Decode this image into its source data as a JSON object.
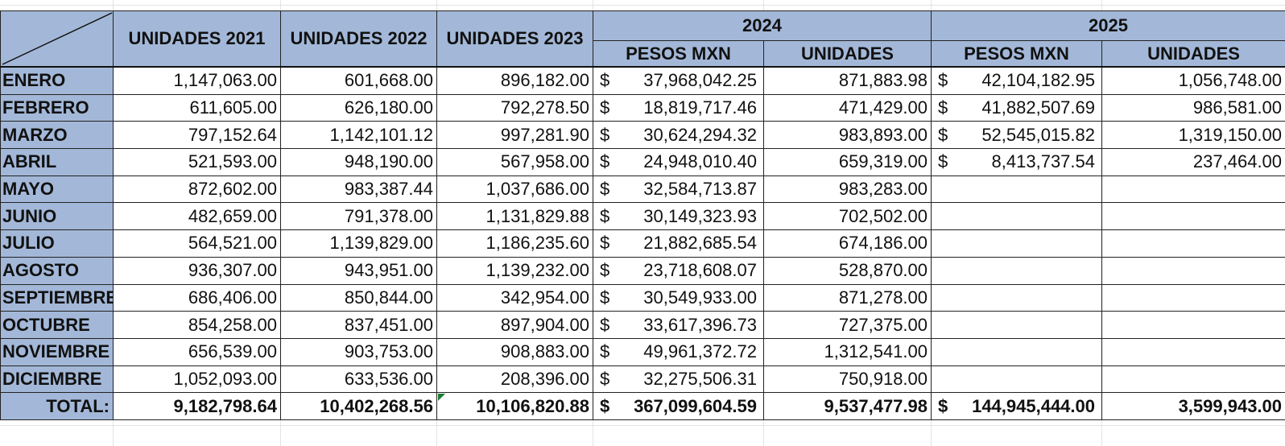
{
  "headers": {
    "u2021": "UNIDADES 2021",
    "u2022": "UNIDADES 2022",
    "u2023": "UNIDADES 2023",
    "y2024": "2024",
    "y2025": "2025",
    "pesos": "PESOS MXN",
    "unidades": "UNIDADES"
  },
  "currency_symbol": "$",
  "rows": [
    {
      "month": "ENERO",
      "u2021": "1,147,063.00",
      "u2022": "601,668.00",
      "u2023": "896,182.00",
      "p2024": "37,968,042.25",
      "u2024": "871,883.98",
      "p2025": "42,104,182.95",
      "u2025": "1,056,748.00"
    },
    {
      "month": "FEBRERO",
      "u2021": "611,605.00",
      "u2022": "626,180.00",
      "u2023": "792,278.50",
      "p2024": "18,819,717.46",
      "u2024": "471,429.00",
      "p2025": "41,882,507.69",
      "u2025": "986,581.00"
    },
    {
      "month": "MARZO",
      "u2021": "797,152.64",
      "u2022": "1,142,101.12",
      "u2023": "997,281.90",
      "p2024": "30,624,294.32",
      "u2024": "983,893.00",
      "p2025": "52,545,015.82",
      "u2025": "1,319,150.00"
    },
    {
      "month": "ABRIL",
      "u2021": "521,593.00",
      "u2022": "948,190.00",
      "u2023": "567,958.00",
      "p2024": "24,948,010.40",
      "u2024": "659,319.00",
      "p2025": "8,413,737.54",
      "u2025": "237,464.00"
    },
    {
      "month": "MAYO",
      "u2021": "872,602.00",
      "u2022": "983,387.44",
      "u2023": "1,037,686.00",
      "p2024": "32,584,713.87",
      "u2024": "983,283.00",
      "p2025": "",
      "u2025": ""
    },
    {
      "month": "JUNIO",
      "u2021": "482,659.00",
      "u2022": "791,378.00",
      "u2023": "1,131,829.88",
      "p2024": "30,149,323.93",
      "u2024": "702,502.00",
      "p2025": "",
      "u2025": ""
    },
    {
      "month": "JULIO",
      "u2021": "564,521.00",
      "u2022": "1,139,829.00",
      "u2023": "1,186,235.60",
      "p2024": "21,882,685.54",
      "u2024": "674,186.00",
      "p2025": "",
      "u2025": ""
    },
    {
      "month": "AGOSTO",
      "u2021": "936,307.00",
      "u2022": "943,951.00",
      "u2023": "1,139,232.00",
      "p2024": "23,718,608.07",
      "u2024": "528,870.00",
      "p2025": "",
      "u2025": ""
    },
    {
      "month": "SEPTIEMBRE",
      "u2021": "686,406.00",
      "u2022": "850,844.00",
      "u2023": "342,954.00",
      "p2024": "30,549,933.00",
      "u2024": "871,278.00",
      "p2025": "",
      "u2025": ""
    },
    {
      "month": "OCTUBRE",
      "u2021": "854,258.00",
      "u2022": "837,451.00",
      "u2023": "897,904.00",
      "p2024": "33,617,396.73",
      "u2024": "727,375.00",
      "p2025": "",
      "u2025": ""
    },
    {
      "month": "NOVIEMBRE",
      "u2021": "656,539.00",
      "u2022": "903,753.00",
      "u2023": "908,883.00",
      "p2024": "49,961,372.72",
      "u2024": "1,312,541.00",
      "p2025": "",
      "u2025": ""
    },
    {
      "month": "DICIEMBRE",
      "u2021": "1,052,093.00",
      "u2022": "633,536.00",
      "u2023": "208,396.00",
      "p2024": "32,275,506.31",
      "u2024": "750,918.00",
      "p2025": "",
      "u2025": ""
    }
  ],
  "total": {
    "label": "TOTAL:",
    "u2021": "9,182,798.64",
    "u2022": "10,402,268.56",
    "u2023": "10,106,820.88",
    "p2024": "367,099,604.59",
    "u2024": "9,537,477.98",
    "p2025": "144,945,444.00",
    "u2025": "3,599,943.00"
  }
}
